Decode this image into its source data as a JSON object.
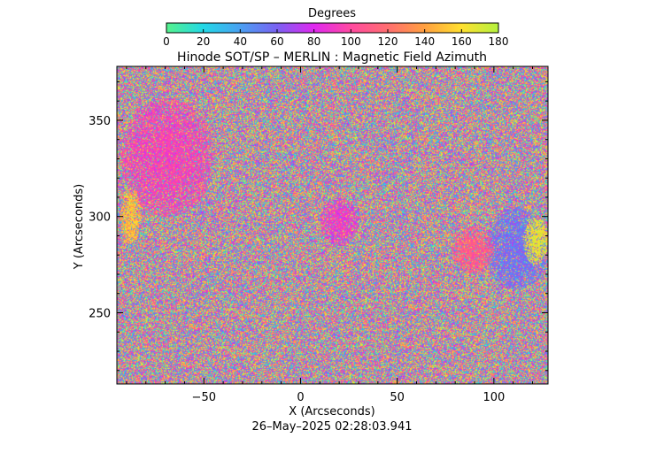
{
  "chart_data": {
    "type": "heatmap",
    "title": "Hinode SOT/SP – MERLIN : Magnetic Field Azimuth",
    "xlabel": "X (Arcseconds)",
    "ylabel": "Y (Arcseconds)",
    "timestamp": "26–May–2025 02:28:03.941",
    "xlim": [
      -95,
      128
    ],
    "ylim": [
      213,
      378
    ],
    "x_ticks": [
      -50,
      0,
      50,
      100
    ],
    "x_tick_labels": [
      "−50",
      "0",
      "50",
      "100"
    ],
    "y_ticks": [
      250,
      300,
      350
    ],
    "y_tick_labels": [
      "250",
      "300",
      "350"
    ],
    "colorbar": {
      "title": "Degrees",
      "range": [
        0,
        180
      ],
      "ticks": [
        0,
        20,
        40,
        60,
        80,
        100,
        120,
        140,
        160,
        180
      ],
      "tick_labels": [
        "0",
        "20",
        "40",
        "60",
        "80",
        "100",
        "120",
        "140",
        "160",
        "180"
      ],
      "colors": [
        "#55f28c",
        "#22d8e6",
        "#4aa0f2",
        "#7a62f2",
        "#e028f0",
        "#ff4aa0",
        "#ff6e70",
        "#ffa040",
        "#ffe030",
        "#b4f23e"
      ]
    },
    "regions": [
      {
        "name": "magenta patch upper left",
        "x": [
          -93,
          -45
        ],
        "y": [
          300,
          362
        ],
        "azimuth": 95
      },
      {
        "name": "yellow-orange patch left edge",
        "x": [
          -93,
          -83
        ],
        "y": [
          285,
          315
        ],
        "azimuth": 150
      },
      {
        "name": "cyan-blue patch right",
        "x": [
          95,
          128
        ],
        "y": [
          262,
          305
        ],
        "azimuth": 55
      },
      {
        "name": "pink-red patch right",
        "x": [
          78,
          100
        ],
        "y": [
          270,
          295
        ],
        "azimuth": 110
      },
      {
        "name": "yellow-green patch far right",
        "x": [
          115,
          128
        ],
        "y": [
          275,
          300
        ],
        "azimuth": 165
      },
      {
        "name": "magenta patch center",
        "x": [
          10,
          30
        ],
        "y": [
          285,
          310
        ],
        "azimuth": 90
      }
    ]
  }
}
